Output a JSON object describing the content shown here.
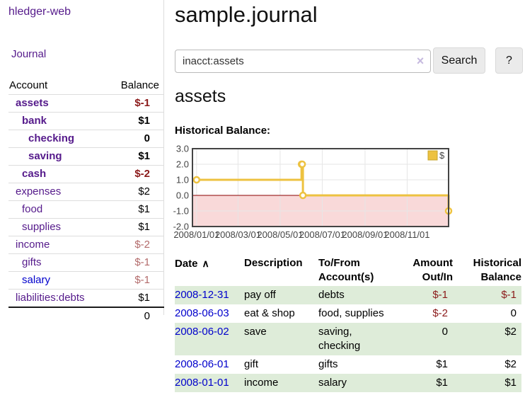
{
  "brand": "hledger-web",
  "nav": {
    "journal": "Journal"
  },
  "sidebar": {
    "col_account": "Account",
    "col_balance": "Balance",
    "accounts": [
      {
        "name": "assets",
        "balance": "$-1",
        "indent": 1,
        "bold": true,
        "neg": "strong"
      },
      {
        "name": "bank",
        "balance": "$1",
        "indent": 2,
        "bold": true
      },
      {
        "name": "checking",
        "balance": "0",
        "indent": 3,
        "bold": true
      },
      {
        "name": "saving",
        "balance": "$1",
        "indent": 3,
        "bold": true
      },
      {
        "name": "cash",
        "balance": "$-2",
        "indent": 2,
        "bold": true,
        "neg": "strong"
      },
      {
        "name": "expenses",
        "balance": "$2",
        "indent": 1
      },
      {
        "name": "food",
        "balance": "$1",
        "indent": 2
      },
      {
        "name": "supplies",
        "balance": "$1",
        "indent": 2
      },
      {
        "name": "income",
        "balance": "$-2",
        "indent": 1,
        "neg": "soft"
      },
      {
        "name": "gifts",
        "balance": "$-1",
        "indent": 2,
        "neg": "soft"
      },
      {
        "name": "salary",
        "balance": "$-1",
        "indent": 2,
        "neg": "soft",
        "link": "new"
      },
      {
        "name": "liabilities:debts",
        "balance": "$1",
        "indent": 1
      }
    ],
    "total": "0"
  },
  "main": {
    "title": "sample.journal",
    "search": {
      "value": "inacct:assets",
      "clear_icon": "×",
      "button": "Search",
      "help": "?"
    },
    "heading": "assets",
    "chart_title": "Historical Balance:"
  },
  "chart_data": {
    "type": "line",
    "step": true,
    "title": "Historical Balance",
    "series": [
      {
        "name": "$",
        "color": "#edc240",
        "points": [
          [
            "2008-01-01",
            1
          ],
          [
            "2008-06-01",
            2
          ],
          [
            "2008-06-02",
            2
          ],
          [
            "2008-06-03",
            0
          ],
          [
            "2008-12-31",
            -1
          ]
        ]
      }
    ],
    "ylim": [
      -2,
      3
    ],
    "ytick_labels": [
      "3.0",
      "2.0",
      "1.0",
      "0.0",
      "-1.0",
      "-2.0"
    ],
    "xticks": [
      "2008/01/01",
      "2008/03/01",
      "2008/05/01",
      "2008/07/01",
      "2008/09/01",
      "2008/11/01"
    ],
    "grid": true,
    "legend": {
      "position": "top-right",
      "label": "$"
    },
    "negative_region_color": "#f9d9d9",
    "zero_line_color": "#8b0000",
    "axis_text_color": "#444444",
    "marker": "open-circle"
  },
  "register": {
    "headers": {
      "date": "Date",
      "sort_icon": "∧",
      "description": "Description",
      "account": "To/From Account(s)",
      "amount": "Amount Out/In",
      "balance": "Historical Balance"
    },
    "rows": [
      {
        "date": "2008-12-31",
        "description": "pay off",
        "account": "debts",
        "amount": "$-1",
        "amount_neg": true,
        "balance": "$-1",
        "balance_neg": true,
        "shade": true
      },
      {
        "date": "2008-06-03",
        "description": "eat & shop",
        "account": "food, supplies",
        "amount": "$-2",
        "amount_neg": true,
        "balance": "0",
        "shade": false
      },
      {
        "date": "2008-06-02",
        "description": "save",
        "account": "saving, checking",
        "amount": "0",
        "balance": "$2",
        "shade": true
      },
      {
        "date": "2008-06-01",
        "description": "gift",
        "account": "gifts",
        "amount": "$1",
        "balance": "$2",
        "shade": false
      },
      {
        "date": "2008-01-01",
        "description": "income",
        "account": "salary",
        "amount": "$1",
        "balance": "$1",
        "shade": true
      }
    ]
  }
}
